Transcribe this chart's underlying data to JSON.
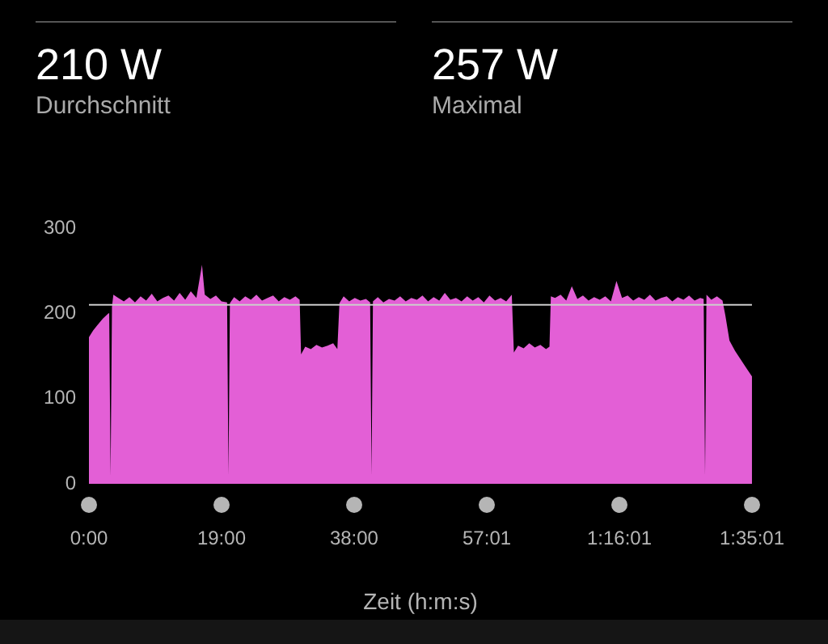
{
  "chart_data": {
    "type": "area",
    "xlabel": "Zeit (h:m:s)",
    "annotations": [
      "210 W",
      "Durchschnitt",
      "257 W",
      "Maximal"
    ],
    "x": [
      0,
      0.6,
      1.2,
      2.0,
      2.8,
      2.9,
      3.1,
      3.3,
      3.5,
      4.2,
      5.0,
      5.8,
      6.6,
      7.4,
      8.2,
      9.0,
      9.8,
      10.6,
      11.4,
      12.2,
      13.0,
      13.8,
      14.6,
      15.4,
      16.2,
      16.6,
      17.4,
      18.2,
      19.0,
      19.8,
      20.0,
      20.2,
      20.8,
      21.6,
      22.4,
      23.2,
      24.0,
      24.8,
      25.6,
      26.4,
      27.2,
      28.0,
      28.8,
      29.6,
      30.2,
      30.4,
      31.0,
      31.8,
      32.6,
      33.4,
      34.2,
      35.0,
      35.6,
      35.9,
      36.5,
      37.3,
      38.1,
      38.9,
      39.7,
      40.3,
      40.5,
      40.7,
      41.4,
      42.2,
      43.0,
      43.8,
      44.6,
      45.4,
      46.2,
      47.0,
      47.8,
      48.6,
      49.4,
      50.2,
      51.0,
      51.8,
      52.6,
      53.4,
      54.2,
      55.0,
      55.8,
      56.6,
      57.4,
      58.2,
      59.0,
      59.8,
      60.6,
      60.9,
      61.5,
      62.3,
      63.1,
      63.9,
      64.7,
      65.5,
      66.0,
      66.2,
      66.8,
      67.6,
      68.4,
      69.2,
      70.0,
      70.8,
      71.6,
      72.4,
      73.2,
      74.0,
      74.8,
      75.6,
      76.4,
      77.2,
      78.0,
      78.8,
      79.6,
      80.4,
      81.2,
      82.0,
      82.8,
      83.6,
      84.4,
      85.2,
      86.0,
      86.8,
      87.6,
      88.1,
      88.3,
      88.5,
      89.2,
      90.0,
      90.8,
      91.2,
      91.8,
      92.6,
      93.4,
      94.2,
      95.02
    ],
    "series": [
      {
        "color": "#e35fd6",
        "values": [
          172,
          180,
          186,
          194,
          200,
          205,
          10,
          208,
          222,
          218,
          214,
          219,
          213,
          220,
          215,
          223,
          214,
          218,
          221,
          215,
          224,
          216,
          226,
          218,
          257,
          222,
          217,
          221,
          214,
          213,
          10,
          212,
          219,
          214,
          220,
          216,
          222,
          215,
          218,
          221,
          214,
          219,
          216,
          220,
          216,
          152,
          161,
          158,
          163,
          160,
          162,
          165,
          158,
          212,
          220,
          214,
          218,
          215,
          217,
          213,
          10,
          214,
          219,
          213,
          217,
          215,
          220,
          214,
          218,
          216,
          221,
          214,
          219,
          215,
          224,
          216,
          218,
          214,
          220,
          215,
          219,
          213,
          221,
          215,
          218,
          214,
          222,
          154,
          162,
          159,
          165,
          160,
          163,
          158,
          161,
          220,
          218,
          222,
          215,
          232,
          217,
          221,
          215,
          219,
          216,
          220,
          214,
          238,
          218,
          221,
          215,
          219,
          216,
          222,
          215,
          218,
          220,
          214,
          219,
          216,
          221,
          215,
          218,
          217,
          10,
          222,
          216,
          220,
          215,
          198,
          168,
          156,
          146,
          136,
          126
        ]
      }
    ],
    "xlim": [
      0,
      95.02
    ],
    "xticks": [
      {
        "value": 0,
        "label": "0:00"
      },
      {
        "value": 19,
        "label": "19:00"
      },
      {
        "value": 38,
        "label": "38:00"
      },
      {
        "value": 57.02,
        "label": "57:01"
      },
      {
        "value": 76.02,
        "label": "1:16:01"
      },
      {
        "value": 95.02,
        "label": "1:35:01"
      }
    ],
    "ylim": [
      0,
      300
    ],
    "yticks": [
      0,
      100,
      200,
      300
    ],
    "ref_lines": [
      {
        "axis": "y",
        "value": 210,
        "color": "#cccccc"
      }
    ]
  }
}
